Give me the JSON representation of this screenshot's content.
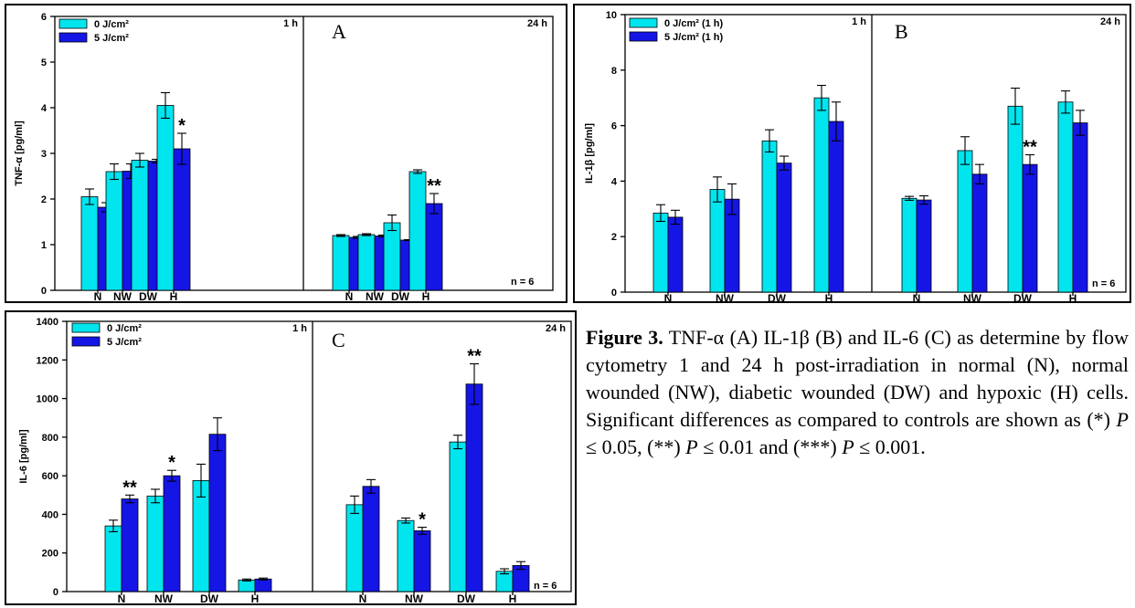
{
  "colors": {
    "light": "#00e5ee",
    "dark": "#1515e6",
    "frame": "#000000"
  },
  "chart_data": [
    {
      "type": "bar",
      "panel_label": "A",
      "ylabel": "TNF-α [pg/ml]",
      "ylim": [
        0,
        6
      ],
      "yticks": [
        0,
        1,
        2,
        3,
        4,
        5,
        6
      ],
      "categories": [
        "N",
        "NW",
        "DW",
        "H"
      ],
      "legend": [
        "0 J/cm²",
        "5 J/cm²"
      ],
      "legend_placement": "top-left",
      "n_label": "n = 6",
      "groups": [
        {
          "time_label": "1 h",
          "series": [
            {
              "name": "0 J/cm²",
              "values": [
                2.05,
                2.6,
                2.85,
                4.05
              ],
              "errors": [
                0.17,
                0.17,
                0.15,
                0.28
              ]
            },
            {
              "name": "5 J/cm²",
              "values": [
                1.82,
                2.61,
                2.83,
                3.1
              ],
              "errors": [
                0.1,
                0.16,
                0.04,
                0.34
              ]
            }
          ],
          "annotations": [
            {
              "category": "H",
              "series": 1,
              "text": "*"
            }
          ]
        },
        {
          "time_label": "24 h",
          "series": [
            {
              "name": "0 J/cm²",
              "values": [
                1.2,
                1.22,
                1.48,
                2.6
              ],
              "errors": [
                0.02,
                0.02,
                0.17,
                0.04
              ]
            },
            {
              "name": "5 J/cm²",
              "values": [
                1.16,
                1.19,
                1.1,
                1.9
              ],
              "errors": [
                0.02,
                0.02,
                0.01,
                0.22
              ]
            }
          ],
          "annotations": [
            {
              "category": "H",
              "series": 1,
              "text": "**"
            }
          ]
        }
      ]
    },
    {
      "type": "bar",
      "panel_label": "B",
      "ylabel": "IL-1β [pg/ml]",
      "ylim": [
        0,
        10
      ],
      "yticks": [
        0,
        2,
        4,
        6,
        8,
        10
      ],
      "categories": [
        "N",
        "NW",
        "DW",
        "H"
      ],
      "legend": [
        "0 J/cm² (1 h)",
        "5 J/cm² (1 h)"
      ],
      "legend_placement": "top-left",
      "n_label": "n = 6",
      "groups": [
        {
          "time_label": "1 h",
          "series": [
            {
              "name": "0 J/cm² (1 h)",
              "values": [
                2.85,
                3.7,
                5.45,
                7.0
              ],
              "errors": [
                0.3,
                0.45,
                0.4,
                0.45
              ]
            },
            {
              "name": "5 J/cm² (1 h)",
              "values": [
                2.7,
                3.35,
                4.65,
                6.15
              ],
              "errors": [
                0.25,
                0.55,
                0.25,
                0.7
              ]
            }
          ],
          "annotations": []
        },
        {
          "time_label": "24 h",
          "series": [
            {
              "name": "0 J/cm² (1 h)",
              "values": [
                3.38,
                5.1,
                6.7,
                6.85
              ],
              "errors": [
                0.07,
                0.5,
                0.65,
                0.4
              ]
            },
            {
              "name": "5 J/cm² (1 h)",
              "values": [
                3.32,
                4.25,
                4.6,
                6.1
              ],
              "errors": [
                0.15,
                0.35,
                0.35,
                0.45
              ]
            }
          ],
          "annotations": [
            {
              "category": "DW",
              "series": 1,
              "text": "**"
            }
          ]
        }
      ]
    },
    {
      "type": "bar",
      "panel_label": "C",
      "ylabel": "IL-6 [pg/ml]",
      "ylim": [
        0,
        1400
      ],
      "yticks": [
        0,
        200,
        400,
        600,
        800,
        1000,
        1200,
        1400
      ],
      "categories": [
        "N",
        "NW",
        "DW",
        "H"
      ],
      "legend": [
        "0 J/cm²",
        "5 J/cm²"
      ],
      "legend_placement": "top-left",
      "n_label": "n = 6",
      "groups": [
        {
          "time_label": "1 h",
          "series": [
            {
              "name": "0 J/cm²",
              "values": [
                340,
                495,
                575,
                60
              ],
              "errors": [
                30,
                35,
                85,
                5
              ]
            },
            {
              "name": "5 J/cm²",
              "values": [
                480,
                600,
                815,
                65
              ],
              "errors": [
                20,
                28,
                85,
                5
              ]
            }
          ],
          "annotations": [
            {
              "category": "N",
              "series": 1,
              "text": "**"
            },
            {
              "category": "NW",
              "series": 1,
              "text": "*"
            }
          ]
        },
        {
          "time_label": "24 h",
          "series": [
            {
              "name": "0 J/cm²",
              "values": [
                450,
                368,
                775,
                105
              ],
              "errors": [
                45,
                13,
                35,
                13
              ]
            },
            {
              "name": "5 J/cm²",
              "values": [
                545,
                315,
                1075,
                135
              ],
              "errors": [
                35,
                18,
                105,
                20
              ]
            }
          ],
          "annotations": [
            {
              "category": "NW",
              "series": 1,
              "text": "*"
            },
            {
              "category": "DW",
              "series": 1,
              "text": "**"
            }
          ]
        }
      ]
    }
  ],
  "caption": {
    "label": "Figure 3.",
    "text_parts": [
      " TNF-α (A) IL-1β (B) and IL-6 (C) as determine by flow cytometry 1 and 24 h post-irradiation in normal (N), normal wounded (NW), diabetic wounded (DW) and hypoxic (H) cells. Significant differences as compared to controls are shown as (*) ",
      "P",
      " ≤ 0.05, (**) ",
      "P",
      " ≤ 0.01 and (***) ",
      "P",
      " ≤ 0.001."
    ]
  }
}
